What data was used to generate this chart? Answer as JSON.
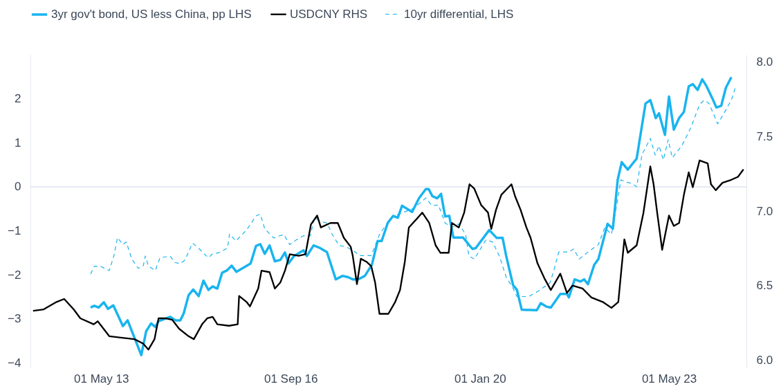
{
  "chart_data": {
    "type": "line",
    "legend": "top",
    "grid": false,
    "xlim": [
      "2012-02-01",
      "2024-09-10"
    ],
    "xticks": [
      {
        "value": "2013-05-01",
        "label": "01 May 13"
      },
      {
        "value": "2016-09-01",
        "label": "01 Sep 16"
      },
      {
        "value": "2020-01-01",
        "label": "01 Jan 20"
      },
      {
        "value": "2023-05-01",
        "label": "01 May 23"
      }
    ],
    "ylim": [
      -4.1,
      3.0
    ],
    "yticks": [
      -4,
      -3,
      -2,
      -1,
      0,
      1,
      2
    ],
    "y2lim": [
      5.95,
      8.05
    ],
    "y2ticks": [
      {
        "value": 6,
        "label": "6.0"
      },
      {
        "value": 6.5,
        "label": "6.5"
      },
      {
        "value": 7,
        "label": "7.0"
      },
      {
        "value": 7.5,
        "label": "7.5"
      },
      {
        "value": 8,
        "label": "8.0"
      }
    ],
    "ref_lines": [
      {
        "axis": "y",
        "value": 0,
        "color": "#dde4f0"
      }
    ],
    "series": [
      {
        "name": "3yr gov't bond, US less China, pp LHS",
        "color": "#19b4ef",
        "line_style": "solid",
        "axis": "y",
        "x": [
          "2013-02-22",
          "2013-03-18",
          "2013-04-14",
          "2013-05-18",
          "2013-06-14",
          "2013-07-18",
          "2013-09-18",
          "2013-10-18",
          "2014-01-14",
          "2014-02-14",
          "2014-03-18",
          "2014-04-14",
          "2014-05-05",
          "2014-07-18",
          "2014-08-22",
          "2014-09-22",
          "2014-10-14",
          "2014-11-14",
          "2014-12-14",
          "2015-01-18",
          "2015-02-18",
          "2015-03-22",
          "2015-04-18",
          "2015-05-18",
          "2015-06-18",
          "2015-07-18",
          "2015-08-18",
          "2015-09-18",
          "2015-12-18",
          "2016-01-22",
          "2016-02-18",
          "2016-03-18",
          "2016-04-18",
          "2016-05-22",
          "2016-06-26",
          "2016-07-26",
          "2016-08-18",
          "2016-09-22",
          "2016-11-22",
          "2016-12-14",
          "2017-01-26",
          "2017-03-09",
          "2017-04-22",
          "2017-06-18",
          "2017-08-01",
          "2017-09-05",
          "2017-10-05",
          "2017-11-09",
          "2017-12-22",
          "2018-02-05",
          "2018-03-14",
          "2018-04-09",
          "2018-05-18",
          "2018-06-22",
          "2018-07-22",
          "2018-08-18",
          "2018-10-22",
          "2018-12-05",
          "2019-01-18",
          "2019-02-05",
          "2019-03-01",
          "2019-04-01",
          "2019-04-26",
          "2019-05-22",
          "2019-06-18",
          "2019-07-14",
          "2019-09-14",
          "2019-11-14",
          "2019-12-05",
          "2020-03-01",
          "2020-04-18",
          "2020-05-26",
          "2020-06-18",
          "2020-08-01",
          "2020-08-26",
          "2020-09-26",
          "2021-01-01",
          "2021-01-26",
          "2021-03-05",
          "2021-04-01",
          "2021-06-01",
          "2021-07-14",
          "2021-07-26",
          "2021-09-01",
          "2021-10-09",
          "2021-11-01",
          "2021-11-26",
          "2022-01-05",
          "2022-02-01",
          "2022-04-01",
          "2022-05-05",
          "2022-06-05",
          "2022-07-01",
          "2022-08-09",
          "2022-10-05",
          "2022-12-01",
          "2023-01-01",
          "2023-02-05",
          "2023-02-26",
          "2023-04-05",
          "2023-05-01",
          "2023-06-01",
          "2023-07-05",
          "2023-08-05",
          "2023-09-05",
          "2023-10-01",
          "2023-11-01",
          "2023-12-01",
          "2023-12-26",
          "2024-02-05",
          "2024-03-01",
          "2024-04-01",
          "2024-05-01",
          "2024-06-05"
        ],
        "values": [
          -2.74,
          -2.7,
          -2.74,
          -2.62,
          -2.77,
          -2.69,
          -3.16,
          -3.03,
          -3.82,
          -3.28,
          -3.1,
          -3.18,
          -3.05,
          -2.95,
          -3.03,
          -3.03,
          -2.87,
          -2.46,
          -2.33,
          -2.48,
          -2.13,
          -2.34,
          -2.26,
          -2.31,
          -1.95,
          -1.9,
          -1.79,
          -1.93,
          -1.74,
          -1.34,
          -1.3,
          -1.52,
          -1.33,
          -1.69,
          -1.66,
          -1.49,
          -1.74,
          -1.57,
          -1.44,
          -1.57,
          -1.33,
          -1.39,
          -1.48,
          -2.1,
          -2.02,
          -2.05,
          -2.1,
          -2.1,
          -2.02,
          -1.77,
          -1.23,
          -1.23,
          -0.82,
          -0.66,
          -0.7,
          -0.43,
          -0.57,
          -0.26,
          -0.05,
          -0.05,
          -0.21,
          -0.26,
          -0.16,
          -0.67,
          -0.66,
          -1.15,
          -1.15,
          -1.41,
          -1.39,
          -0.98,
          -1.16,
          -1.16,
          -1.57,
          -2.23,
          -2.34,
          -2.79,
          -2.8,
          -2.64,
          -2.72,
          -2.74,
          -2.43,
          -2.43,
          -2.51,
          -2.1,
          -2.15,
          -2.1,
          -2.21,
          -1.77,
          -1.64,
          -0.84,
          -0.95,
          0.16,
          0.56,
          0.39,
          0.64,
          1.89,
          1.97,
          1.56,
          1.67,
          1.18,
          2.05,
          1.3,
          1.56,
          1.7,
          2.28,
          2.33,
          2.2,
          2.44,
          2.3,
          2.0,
          1.8,
          1.84,
          2.25,
          2.49
        ]
      },
      {
        "name": "USDCNY RHS",
        "color": "#000000",
        "line_style": "solid",
        "axis": "y2",
        "x": [
          "2012-02-18",
          "2012-04-26",
          "2012-07-18",
          "2012-09-05",
          "2012-11-05",
          "2012-12-18",
          "2013-03-14",
          "2013-04-09",
          "2013-06-22",
          "2013-09-05",
          "2013-12-01",
          "2014-01-26",
          "2014-03-01",
          "2014-04-09",
          "2014-05-05",
          "2014-06-18",
          "2014-08-01",
          "2014-09-14",
          "2014-11-14",
          "2014-12-18",
          "2015-02-09",
          "2015-03-14",
          "2015-04-18",
          "2015-05-18",
          "2015-08-01",
          "2015-09-26",
          "2015-10-05",
          "2015-11-22",
          "2015-12-14",
          "2016-02-05",
          "2016-02-26",
          "2016-04-18",
          "2016-05-22",
          "2016-06-26",
          "2016-07-26",
          "2016-08-26",
          "2016-10-22",
          "2016-12-05",
          "2017-01-09",
          "2017-02-18",
          "2017-03-14",
          "2017-05-14",
          "2017-07-01",
          "2017-08-09",
          "2017-09-22",
          "2017-10-05",
          "2017-11-01",
          "2017-11-26",
          "2018-01-01",
          "2018-02-01",
          "2018-02-26",
          "2018-03-26",
          "2018-05-22",
          "2018-07-05",
          "2018-08-05",
          "2018-09-05",
          "2018-10-01",
          "2018-11-14",
          "2018-12-26",
          "2019-02-09",
          "2019-03-22",
          "2019-04-22",
          "2019-06-14",
          "2019-07-05",
          "2019-08-18",
          "2019-09-22",
          "2019-10-26",
          "2019-11-26",
          "2020-01-09",
          "2020-02-22",
          "2020-03-14",
          "2020-04-14",
          "2020-05-18",
          "2020-07-22",
          "2020-08-14",
          "2020-09-18",
          "2020-10-26",
          "2020-11-22",
          "2021-01-05",
          "2021-02-18",
          "2021-04-01",
          "2021-06-01",
          "2021-07-14",
          "2021-08-18",
          "2021-10-22",
          "2021-12-18",
          "2022-03-01",
          "2022-04-26",
          "2022-06-09",
          "2022-07-01",
          "2022-07-18",
          "2022-08-09",
          "2022-10-05",
          "2022-11-18",
          "2023-01-01",
          "2023-01-22",
          "2023-02-14",
          "2023-03-18",
          "2023-05-01",
          "2023-06-01",
          "2023-07-05",
          "2023-08-05",
          "2023-09-05",
          "2023-10-01",
          "2023-11-14",
          "2024-01-05",
          "2024-01-26",
          "2024-02-26",
          "2024-04-09",
          "2024-06-05",
          "2024-07-18",
          "2024-08-22"
        ],
        "values": [
          6.33,
          6.34,
          6.39,
          6.41,
          6.34,
          6.28,
          6.24,
          6.26,
          6.16,
          6.15,
          6.14,
          6.11,
          6.07,
          6.14,
          6.28,
          6.28,
          6.27,
          6.21,
          6.16,
          6.14,
          6.24,
          6.28,
          6.29,
          6.24,
          6.23,
          6.24,
          6.43,
          6.39,
          6.36,
          6.48,
          6.6,
          6.59,
          6.48,
          6.52,
          6.6,
          6.71,
          6.7,
          6.71,
          6.91,
          6.97,
          6.89,
          6.92,
          6.92,
          6.82,
          6.76,
          6.7,
          6.51,
          6.68,
          6.66,
          6.63,
          6.52,
          6.31,
          6.31,
          6.39,
          6.47,
          6.66,
          6.89,
          6.94,
          6.99,
          6.92,
          6.77,
          6.72,
          6.72,
          6.92,
          6.89,
          6.99,
          7.18,
          7.15,
          7.04,
          6.99,
          6.88,
          7.01,
          7.11,
          7.18,
          7.1,
          7.01,
          6.89,
          6.82,
          6.65,
          6.55,
          6.47,
          6.58,
          6.45,
          6.5,
          6.48,
          6.42,
          6.39,
          6.35,
          6.39,
          6.63,
          6.81,
          6.72,
          6.77,
          6.99,
          7.3,
          7.18,
          6.99,
          6.74,
          6.97,
          6.9,
          6.92,
          7.11,
          7.26,
          7.16,
          7.34,
          7.32,
          7.18,
          7.14,
          7.19,
          7.21,
          7.23,
          7.28
        ]
      },
      {
        "name": "10yr differential, LHS",
        "color": "#19b4ef",
        "line_style": "dashed",
        "axis": "y",
        "x": [
          "2013-02-22",
          "2013-03-18",
          "2013-04-26",
          "2013-05-22",
          "2013-06-22",
          "2013-07-22",
          "2013-08-14",
          "2013-09-18",
          "2013-10-09",
          "2013-11-14",
          "2013-12-26",
          "2014-01-26",
          "2014-02-09",
          "2014-03-01",
          "2014-04-14",
          "2014-05-14",
          "2014-07-18",
          "2014-08-18",
          "2014-09-22",
          "2014-10-22",
          "2014-12-09",
          "2015-01-09",
          "2015-02-22",
          "2015-03-22",
          "2015-04-18",
          "2015-06-01",
          "2015-07-22",
          "2015-08-05",
          "2015-09-14",
          "2015-11-22",
          "2016-01-22",
          "2016-02-18",
          "2016-03-18",
          "2016-05-14",
          "2016-07-18",
          "2016-08-26",
          "2016-10-09",
          "2016-11-22",
          "2017-01-05",
          "2017-02-01",
          "2017-03-14",
          "2017-04-22",
          "2017-05-26",
          "2017-07-09",
          "2017-08-22",
          "2017-10-05",
          "2017-11-18",
          "2018-02-01",
          "2018-03-26",
          "2018-04-26",
          "2018-06-22",
          "2018-08-18",
          "2018-10-18",
          "2018-12-22",
          "2019-01-18",
          "2019-02-26",
          "2019-04-09",
          "2019-05-22",
          "2019-07-05",
          "2019-08-18",
          "2019-10-01",
          "2019-10-22",
          "2019-11-26",
          "2020-02-09",
          "2020-03-22",
          "2020-05-05",
          "2020-06-18",
          "2020-08-01",
          "2020-08-26",
          "2020-11-09",
          "2021-01-05",
          "2021-03-26",
          "2021-04-18",
          "2021-05-22",
          "2021-07-26",
          "2021-08-26",
          "2021-10-01",
          "2021-11-22",
          "2022-02-01",
          "2022-03-14",
          "2022-04-26",
          "2022-05-26",
          "2022-06-26",
          "2022-07-22",
          "2022-09-05",
          "2022-10-05",
          "2022-11-09",
          "2023-01-01",
          "2023-02-01",
          "2023-02-26",
          "2023-03-26",
          "2023-04-26",
          "2023-05-22",
          "2023-07-22",
          "2023-09-18",
          "2023-11-14",
          "2023-12-14",
          "2024-01-14",
          "2024-03-09",
          "2024-04-14",
          "2024-06-05",
          "2024-07-05"
        ],
        "values": [
          -1.98,
          -1.8,
          -1.8,
          -1.85,
          -1.9,
          -1.56,
          -1.15,
          -1.31,
          -1.25,
          -1.64,
          -1.85,
          -1.8,
          -1.57,
          -1.8,
          -1.9,
          -1.61,
          -1.57,
          -1.72,
          -1.74,
          -1.66,
          -1.28,
          -1.36,
          -1.52,
          -1.61,
          -1.52,
          -1.49,
          -1.39,
          -1.07,
          -1.23,
          -0.98,
          -0.66,
          -0.62,
          -0.95,
          -1.16,
          -1.08,
          -1.31,
          -1.2,
          -1.11,
          -1.11,
          -0.7,
          -0.79,
          -0.82,
          -1.08,
          -1.33,
          -1.36,
          -1.44,
          -1.56,
          -1.56,
          -1.08,
          -0.92,
          -0.67,
          -0.59,
          -0.51,
          -0.34,
          -0.25,
          -0.43,
          -0.41,
          -0.82,
          -0.92,
          -0.84,
          -1.08,
          -1.57,
          -1.64,
          -1.2,
          -1.25,
          -1.57,
          -2.05,
          -2.3,
          -2.49,
          -2.49,
          -2.38,
          -2.18,
          -1.93,
          -1.48,
          -1.48,
          -1.41,
          -1.64,
          -1.49,
          -1.31,
          -0.92,
          -1.08,
          -0.49,
          0.16,
          0.11,
          0.08,
          0.0,
          0.74,
          1.1,
          0.72,
          0.93,
          0.61,
          1.07,
          0.66,
          0.93,
          1.34,
          1.87,
          1.97,
          1.89,
          1.43,
          1.64,
          1.97,
          2.3
        ]
      }
    ]
  }
}
